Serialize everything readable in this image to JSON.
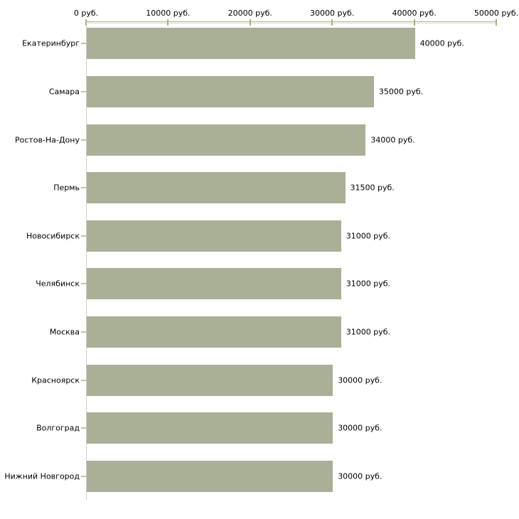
{
  "chart_data": {
    "type": "bar",
    "orientation": "horizontal",
    "title": "",
    "xlabel": "",
    "ylabel": "",
    "xlim": [
      0,
      50000
    ],
    "grid": false,
    "legend": false,
    "x_tick_labels": [
      "0 руб.",
      "10000 руб.",
      "20000 руб.",
      "30000 руб.",
      "40000 руб.",
      "50000 руб."
    ],
    "x_tick_values": [
      0,
      10000,
      20000,
      30000,
      40000,
      50000
    ],
    "categories": [
      "Екатеринбург",
      "Самара",
      "Ростов-На-Дону",
      "Пермь",
      "Новосибирск",
      "Челябинск",
      "Москва",
      "Красноярск",
      "Волгоград",
      "Нижний Новгород"
    ],
    "values": [
      40000,
      35000,
      34000,
      31500,
      31000,
      31000,
      31000,
      30000,
      30000,
      30000
    ],
    "value_labels": [
      "40000 руб.",
      "35000 руб.",
      "34000 руб.",
      "31500 руб.",
      "31000 руб.",
      "31000 руб.",
      "31000 руб.",
      "30000 руб.",
      "30000 руб.",
      "30000 руб."
    ],
    "colors": {
      "bar": "#aab095",
      "axis_line": "#b2b2ab",
      "axis_line_light": "#deddc0",
      "x_tick": "#b0ad7b",
      "y_tick": "#c6c29b",
      "y_axis_line": "#cccccc",
      "text": "#000000",
      "background": "#ffffff"
    }
  }
}
